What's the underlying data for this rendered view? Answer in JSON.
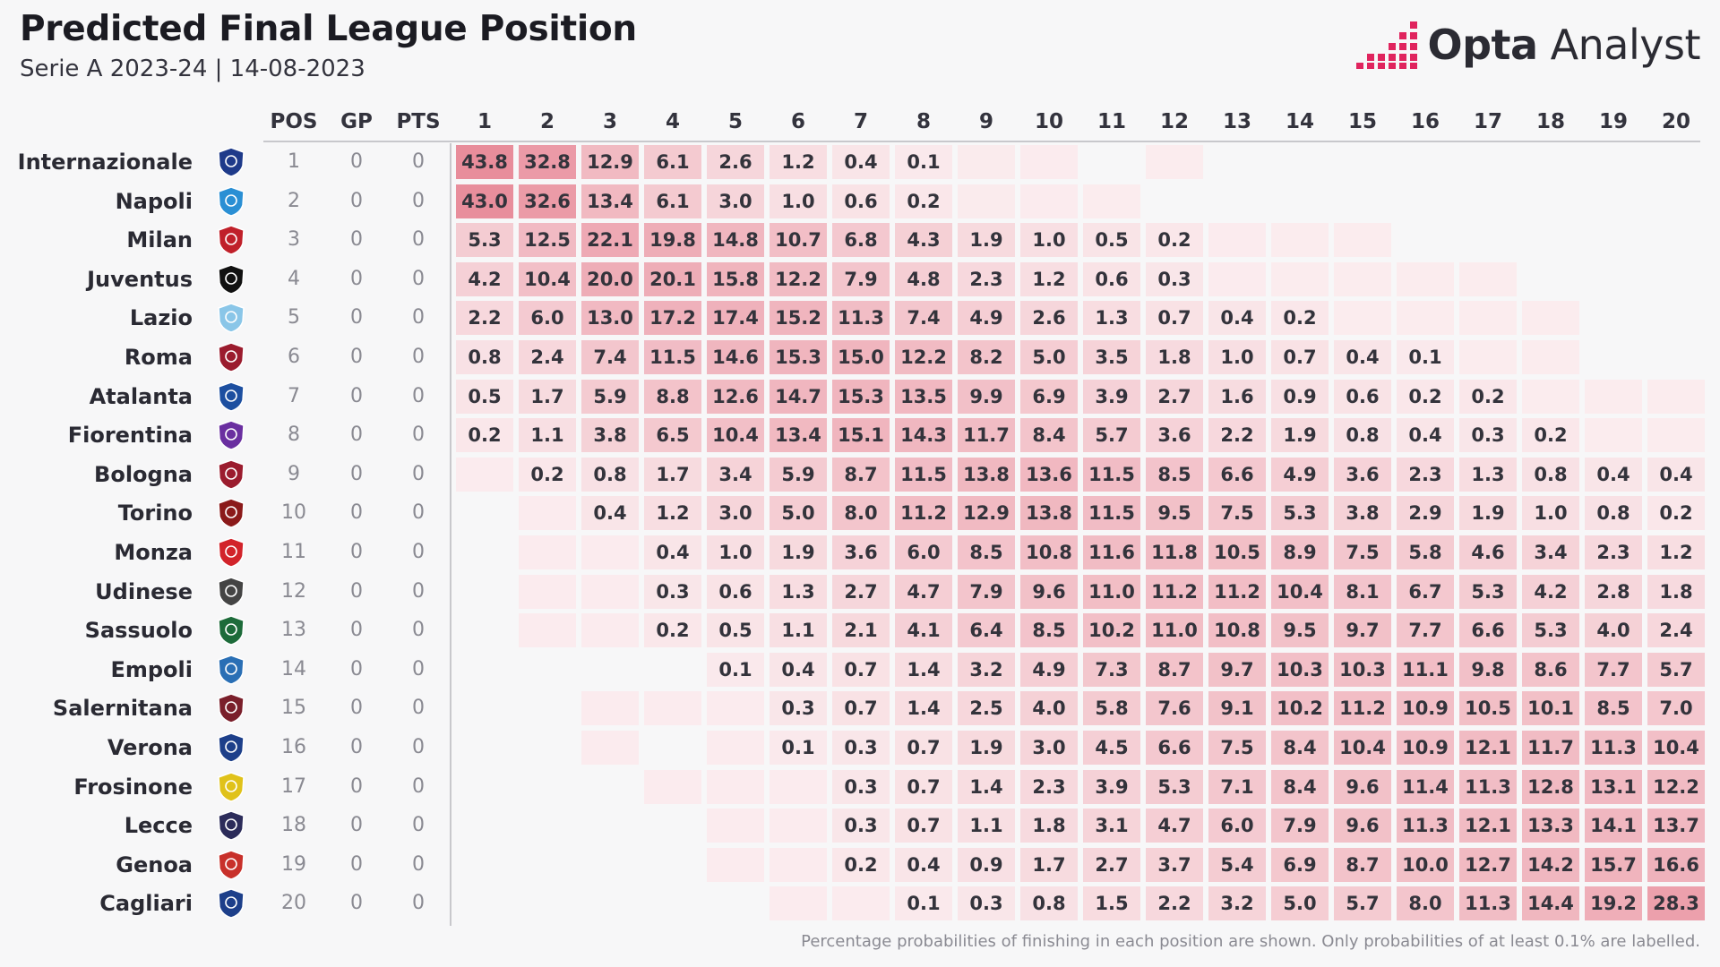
{
  "title": "Predicted Final League Position",
  "subtitle": "Serie A 2023-24 | 14-08-2023",
  "brand": {
    "bold": "Opta",
    "light": " Analyst",
    "logo_icon": "opta-pixel-logo-icon"
  },
  "footer": "Percentage probabilities of finishing in each position are shown. Only probabilities of at least 0.1% are labelled.",
  "colors": {
    "cell_scale_low": "#fbeef0",
    "cell_scale_high": "#e8909e",
    "background": "#f7f7f8"
  },
  "chart_data": {
    "type": "heatmap",
    "columns": [
      "POS",
      "GP",
      "PTS"
    ],
    "positions": [
      "1",
      "2",
      "3",
      "4",
      "5",
      "6",
      "7",
      "8",
      "9",
      "10",
      "11",
      "12",
      "13",
      "14",
      "15",
      "16",
      "17",
      "18",
      "19",
      "20"
    ],
    "unit": "%",
    "teams": [
      {
        "name": "Internazionale",
        "pos": "1",
        "gp": "0",
        "pts": "0",
        "logo": "inter-crest-icon",
        "color": "#1e3a8a",
        "probs": [
          43.8,
          32.8,
          12.9,
          6.1,
          2.6,
          1.2,
          0.4,
          0.1,
          0.04,
          0.03,
          0,
          0.02,
          0,
          0,
          0,
          0,
          0,
          0,
          0,
          0
        ]
      },
      {
        "name": "Napoli",
        "pos": "2",
        "gp": "0",
        "pts": "0",
        "logo": "napoli-crest-icon",
        "color": "#2a8fd4",
        "probs": [
          43.0,
          32.6,
          13.4,
          6.1,
          3.0,
          1.0,
          0.6,
          0.2,
          0.04,
          0.03,
          0.02,
          0,
          0,
          0,
          0,
          0,
          0,
          0,
          0,
          0
        ]
      },
      {
        "name": "Milan",
        "pos": "3",
        "gp": "0",
        "pts": "0",
        "logo": "milan-crest-icon",
        "color": "#c0202a",
        "probs": [
          5.3,
          12.5,
          22.1,
          19.8,
          14.8,
          10.7,
          6.8,
          4.3,
          1.9,
          1.0,
          0.5,
          0.2,
          0.03,
          0.02,
          0.02,
          0,
          0,
          0,
          0,
          0
        ]
      },
      {
        "name": "Juventus",
        "pos": "4",
        "gp": "0",
        "pts": "0",
        "logo": "juventus-crest-icon",
        "color": "#111111",
        "probs": [
          4.2,
          10.4,
          20.0,
          20.1,
          15.8,
          12.2,
          7.9,
          4.8,
          2.3,
          1.2,
          0.6,
          0.3,
          0.03,
          0.02,
          0.02,
          0.02,
          0.02,
          0,
          0,
          0
        ]
      },
      {
        "name": "Lazio",
        "pos": "5",
        "gp": "0",
        "pts": "0",
        "logo": "lazio-crest-icon",
        "color": "#8ac6e8",
        "probs": [
          2.2,
          6.0,
          13.0,
          17.2,
          17.4,
          15.2,
          11.3,
          7.4,
          4.9,
          2.6,
          1.3,
          0.7,
          0.4,
          0.2,
          0.02,
          0.02,
          0.02,
          0.02,
          0,
          0
        ]
      },
      {
        "name": "Roma",
        "pos": "6",
        "gp": "0",
        "pts": "0",
        "logo": "roma-crest-icon",
        "color": "#9b1c2e",
        "probs": [
          0.8,
          2.4,
          7.4,
          11.5,
          14.6,
          15.3,
          15.0,
          12.2,
          8.2,
          5.0,
          3.5,
          1.8,
          1.0,
          0.7,
          0.4,
          0.1,
          0.02,
          0.02,
          0,
          0
        ]
      },
      {
        "name": "Atalanta",
        "pos": "7",
        "gp": "0",
        "pts": "0",
        "logo": "atalanta-crest-icon",
        "color": "#1d4fa0",
        "probs": [
          0.5,
          1.7,
          5.9,
          8.8,
          12.6,
          14.7,
          15.3,
          13.5,
          9.9,
          6.9,
          3.9,
          2.7,
          1.6,
          0.9,
          0.6,
          0.2,
          0.2,
          0.02,
          0.02,
          0.02
        ]
      },
      {
        "name": "Fiorentina",
        "pos": "8",
        "gp": "0",
        "pts": "0",
        "logo": "fiorentina-crest-icon",
        "color": "#6a2fa0",
        "probs": [
          0.2,
          1.1,
          3.8,
          6.5,
          10.4,
          13.4,
          15.1,
          14.3,
          11.7,
          8.4,
          5.7,
          3.6,
          2.2,
          1.9,
          0.8,
          0.4,
          0.3,
          0.2,
          0.02,
          0.02
        ]
      },
      {
        "name": "Bologna",
        "pos": "9",
        "gp": "0",
        "pts": "0",
        "logo": "bologna-crest-icon",
        "color": "#9b1c2e",
        "probs": [
          0.03,
          0.2,
          0.8,
          1.7,
          3.4,
          5.9,
          8.7,
          11.5,
          13.8,
          13.6,
          11.5,
          8.5,
          6.6,
          4.9,
          3.6,
          2.3,
          1.3,
          0.8,
          0.4,
          0.4
        ]
      },
      {
        "name": "Torino",
        "pos": "10",
        "gp": "0",
        "pts": "0",
        "logo": "torino-crest-icon",
        "color": "#8b1a1a",
        "probs": [
          0,
          0.03,
          0.4,
          1.2,
          3.0,
          5.0,
          8.0,
          11.2,
          12.9,
          13.8,
          11.5,
          9.5,
          7.5,
          5.3,
          3.8,
          2.9,
          1.9,
          1.0,
          0.8,
          0.2
        ]
      },
      {
        "name": "Monza",
        "pos": "11",
        "gp": "0",
        "pts": "0",
        "logo": "monza-crest-icon",
        "color": "#d2232a",
        "probs": [
          0,
          0.03,
          0.03,
          0.4,
          1.0,
          1.9,
          3.6,
          6.0,
          8.5,
          10.8,
          11.6,
          11.8,
          10.5,
          8.9,
          7.5,
          5.8,
          4.6,
          3.4,
          2.3,
          1.2
        ]
      },
      {
        "name": "Udinese",
        "pos": "12",
        "gp": "0",
        "pts": "0",
        "logo": "udinese-crest-icon",
        "color": "#444444",
        "probs": [
          0,
          0.03,
          0.03,
          0.3,
          0.6,
          1.3,
          2.7,
          4.7,
          7.9,
          9.6,
          11.0,
          11.2,
          11.2,
          10.4,
          8.1,
          6.7,
          5.3,
          4.2,
          2.8,
          1.8
        ]
      },
      {
        "name": "Sassuolo",
        "pos": "13",
        "gp": "0",
        "pts": "0",
        "logo": "sassuolo-crest-icon",
        "color": "#1d6b3a",
        "probs": [
          0,
          0.03,
          0.03,
          0.2,
          0.5,
          1.1,
          2.1,
          4.1,
          6.4,
          8.5,
          10.2,
          11.0,
          10.8,
          9.5,
          9.7,
          7.7,
          6.6,
          5.3,
          4.0,
          2.4
        ]
      },
      {
        "name": "Empoli",
        "pos": "14",
        "gp": "0",
        "pts": "0",
        "logo": "empoli-crest-icon",
        "color": "#2a6fb5",
        "probs": [
          0,
          0,
          0,
          0,
          0.1,
          0.4,
          0.7,
          1.4,
          3.2,
          4.9,
          7.3,
          8.7,
          9.7,
          10.3,
          10.3,
          11.1,
          9.8,
          8.6,
          7.7,
          5.7
        ]
      },
      {
        "name": "Salernitana",
        "pos": "15",
        "gp": "0",
        "pts": "0",
        "logo": "salernitana-crest-icon",
        "color": "#7a1f2b",
        "probs": [
          0,
          0,
          0.03,
          0.03,
          0.03,
          0.3,
          0.7,
          1.4,
          2.5,
          4.0,
          5.8,
          7.6,
          9.1,
          10.2,
          11.2,
          10.9,
          10.5,
          10.1,
          8.5,
          7.0
        ]
      },
      {
        "name": "Verona",
        "pos": "16",
        "gp": "0",
        "pts": "0",
        "logo": "verona-crest-icon",
        "color": "#1d3f8a",
        "probs": [
          0,
          0,
          0.03,
          0,
          0.03,
          0.1,
          0.3,
          0.7,
          1.9,
          3.0,
          4.5,
          6.6,
          7.5,
          8.4,
          10.4,
          10.9,
          12.1,
          11.7,
          11.3,
          10.4
        ]
      },
      {
        "name": "Frosinone",
        "pos": "17",
        "gp": "0",
        "pts": "0",
        "logo": "frosinone-crest-icon",
        "color": "#e0c21a",
        "probs": [
          0,
          0,
          0,
          0.03,
          0.03,
          0.03,
          0.3,
          0.7,
          1.4,
          2.3,
          3.9,
          5.3,
          7.1,
          8.4,
          9.6,
          11.4,
          11.3,
          12.8,
          13.1,
          12.2
        ]
      },
      {
        "name": "Lecce",
        "pos": "18",
        "gp": "0",
        "pts": "0",
        "logo": "lecce-crest-icon",
        "color": "#2c2c5a",
        "probs": [
          0,
          0,
          0,
          0,
          0.03,
          0.03,
          0.3,
          0.7,
          1.1,
          1.8,
          3.1,
          4.7,
          6.0,
          7.9,
          9.6,
          11.3,
          12.1,
          13.3,
          14.1,
          13.7
        ]
      },
      {
        "name": "Genoa",
        "pos": "19",
        "gp": "0",
        "pts": "0",
        "logo": "genoa-crest-icon",
        "color": "#c8302a",
        "probs": [
          0,
          0,
          0,
          0,
          0.03,
          0.03,
          0.2,
          0.4,
          0.9,
          1.7,
          2.7,
          3.7,
          5.4,
          6.9,
          8.7,
          10.0,
          12.7,
          14.2,
          15.7,
          16.6
        ]
      },
      {
        "name": "Cagliari",
        "pos": "20",
        "gp": "0",
        "pts": "0",
        "logo": "cagliari-crest-icon",
        "color": "#1d3f8a",
        "probs": [
          0,
          0,
          0,
          0,
          0,
          0.03,
          0.03,
          0.1,
          0.3,
          0.8,
          1.5,
          2.2,
          3.2,
          5.0,
          5.7,
          8.0,
          11.3,
          14.4,
          19.2,
          28.3
        ]
      }
    ]
  }
}
